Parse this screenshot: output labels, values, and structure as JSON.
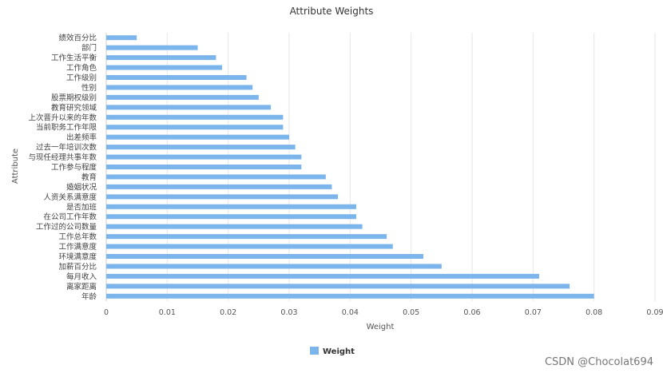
{
  "chart_data": {
    "type": "bar",
    "orientation": "horizontal",
    "title": "Attribute Weights",
    "xlabel": "Weight",
    "ylabel": "Attribute",
    "xlim": [
      0,
      0.09
    ],
    "x_ticks": [
      "0",
      "0.01",
      "0.02",
      "0.03",
      "0.04",
      "0.05",
      "0.06",
      "0.07",
      "0.08",
      "0.09"
    ],
    "grid": "vertical",
    "legend_position": "bottom",
    "series": [
      {
        "name": "Weight",
        "color": "#7cb5ec",
        "categories": [
          "绩效百分比",
          "部门",
          "工作生活平衡",
          "工作角色",
          "工作级别",
          "性别",
          "股票期权级别",
          "教育研究领域",
          "上次晋升以来的年数",
          "当前职务工作年限",
          "出差频率",
          "过去一年培训次数",
          "与现任经理共事年数",
          "工作参与程度",
          "教育",
          "婚姻状况",
          "人资关系满意度",
          "是否加班",
          "在公司工作年数",
          "工作过的公司数量",
          "工作总年数",
          "工作满意度",
          "环境满意度",
          "加薪百分比",
          "每月收入",
          "离家距离",
          "年龄"
        ],
        "values": [
          0.005,
          0.015,
          0.018,
          0.019,
          0.023,
          0.024,
          0.025,
          0.027,
          0.029,
          0.029,
          0.03,
          0.031,
          0.032,
          0.032,
          0.036,
          0.037,
          0.038,
          0.041,
          0.041,
          0.042,
          0.046,
          0.047,
          0.052,
          0.055,
          0.071,
          0.076,
          0.08
        ]
      }
    ]
  },
  "watermark": "CSDN @Chocolat694"
}
